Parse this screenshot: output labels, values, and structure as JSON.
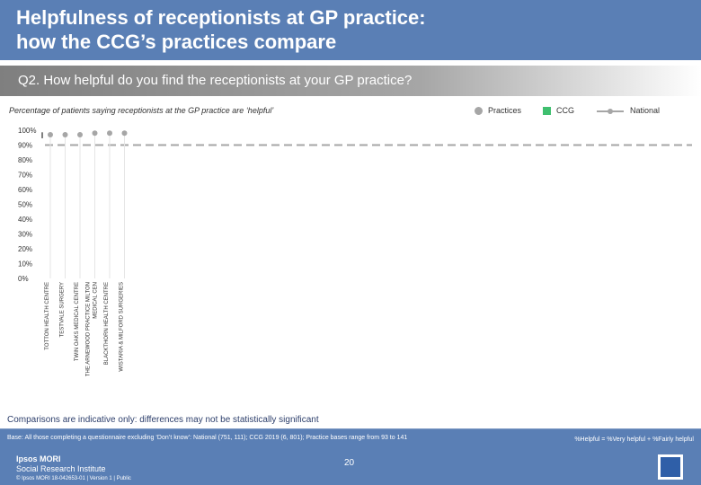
{
  "header": {
    "title_line1": "Helpfulness of receptionists at GP practice:",
    "title_line2": "how the CCG’s practices compare"
  },
  "question": "Q2. How helpful do you find the receptionists at your GP practice?",
  "legend": {
    "practices": "Practices",
    "ccg": "CCG",
    "national": "National"
  },
  "colors": {
    "practices": "#a6a6a6",
    "ccg": "#3fbf6f",
    "national": "#a6a6a6"
  },
  "chart_data": {
    "type": "scatter",
    "title": "Percentage of patients saying receptionists at the GP practice are ‘helpful’",
    "categories": [
      "TOTTON HEALTH CENTRE",
      "TESTVALE SURGERY",
      "TWIN OAKS MEDICAL CENTRE",
      "THE ARNEWOOD PRACTICE MILTON MEDICAL CEN",
      "BLACKTHORN HEALTH CENTRE",
      "WISTARIA & MILFORD SURGERIES"
    ],
    "series": [
      {
        "name": "Practices",
        "values": [
          97,
          97,
          97,
          98,
          98,
          98
        ]
      },
      {
        "name": "National",
        "values": [
          90
        ]
      }
    ],
    "ccg_range": [
      97,
      98
    ],
    "ylim": [
      0,
      100
    ],
    "yticks": [
      "0%",
      "10%",
      "20%",
      "30%",
      "40%",
      "50%",
      "60%",
      "70%",
      "80%",
      "90%",
      "100%"
    ]
  },
  "footer": {
    "comparisons_note": "Comparisons are indicative only: differences may not be statistically significant",
    "base": "Base: All those completing a questionnaire excluding ‘Don’t know’: National (751, 111); CCG 2019 (6, 801); Practice bases range from 93 to 141",
    "definition": "%Helpful = %Very helpful + %Fairly helpful",
    "page_number": "20",
    "logo_line1": "Ipsos MORI",
    "logo_line2": "Social Research Institute",
    "copyright": "© Ipsos MORI     18-042653-01 | Version 1 | Public"
  }
}
